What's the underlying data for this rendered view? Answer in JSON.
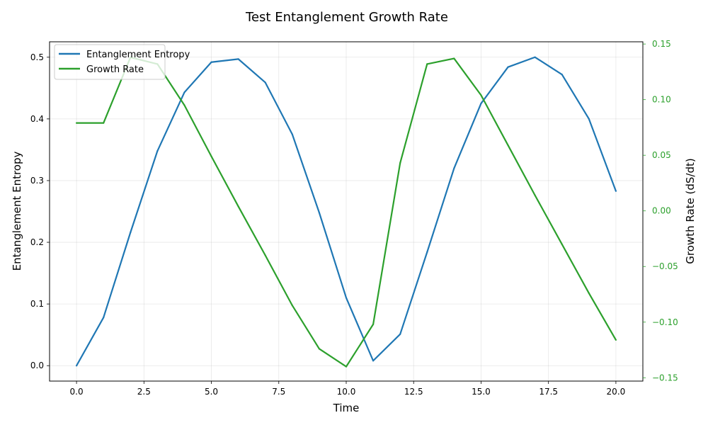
{
  "chart_data": {
    "type": "line",
    "title": "Test Entanglement Growth Rate",
    "xlabel": "Time",
    "ylabel": "Entanglement Entropy",
    "y2label": "Growth Rate (dS/dt)",
    "xlim": [
      -1.0,
      21.0
    ],
    "ylim": [
      -0.025,
      0.525
    ],
    "y2lim": [
      -0.153,
      0.152
    ],
    "xticks": [
      "0.0",
      "2.5",
      "5.0",
      "7.5",
      "10.0",
      "12.5",
      "15.0",
      "17.5",
      "20.0"
    ],
    "yticks": [
      "0.0",
      "0.1",
      "0.2",
      "0.3",
      "0.4",
      "0.5"
    ],
    "y2ticks": [
      "−0.15",
      "−0.10",
      "−0.05",
      "0.00",
      "0.05",
      "0.10",
      "0.15"
    ],
    "grid": true,
    "legend_position": "top-left",
    "x": [
      0,
      1,
      2,
      3,
      4,
      5,
      6,
      7,
      8,
      9,
      10,
      11,
      12,
      13,
      14,
      15,
      16,
      17,
      18,
      19,
      20
    ],
    "series": [
      {
        "name": "Entanglement Entropy",
        "axis": "left",
        "color": "#1f77b4",
        "values": [
          0.0,
          0.078,
          0.216,
          0.348,
          0.443,
          0.492,
          0.497,
          0.459,
          0.375,
          0.248,
          0.11,
          0.008,
          0.051,
          0.184,
          0.32,
          0.425,
          0.484,
          0.5,
          0.472,
          0.4,
          0.283
        ]
      },
      {
        "name": "Growth Rate",
        "axis": "right",
        "color": "#2ca02c",
        "values": [
          0.079,
          0.079,
          0.138,
          0.132,
          0.095,
          0.049,
          0.004,
          -0.04,
          -0.085,
          -0.124,
          -0.14,
          -0.102,
          0.043,
          0.132,
          0.137,
          0.104,
          0.059,
          0.014,
          -0.03,
          -0.074,
          -0.116
        ]
      }
    ],
    "axis_color_right": "#2ca02c"
  }
}
